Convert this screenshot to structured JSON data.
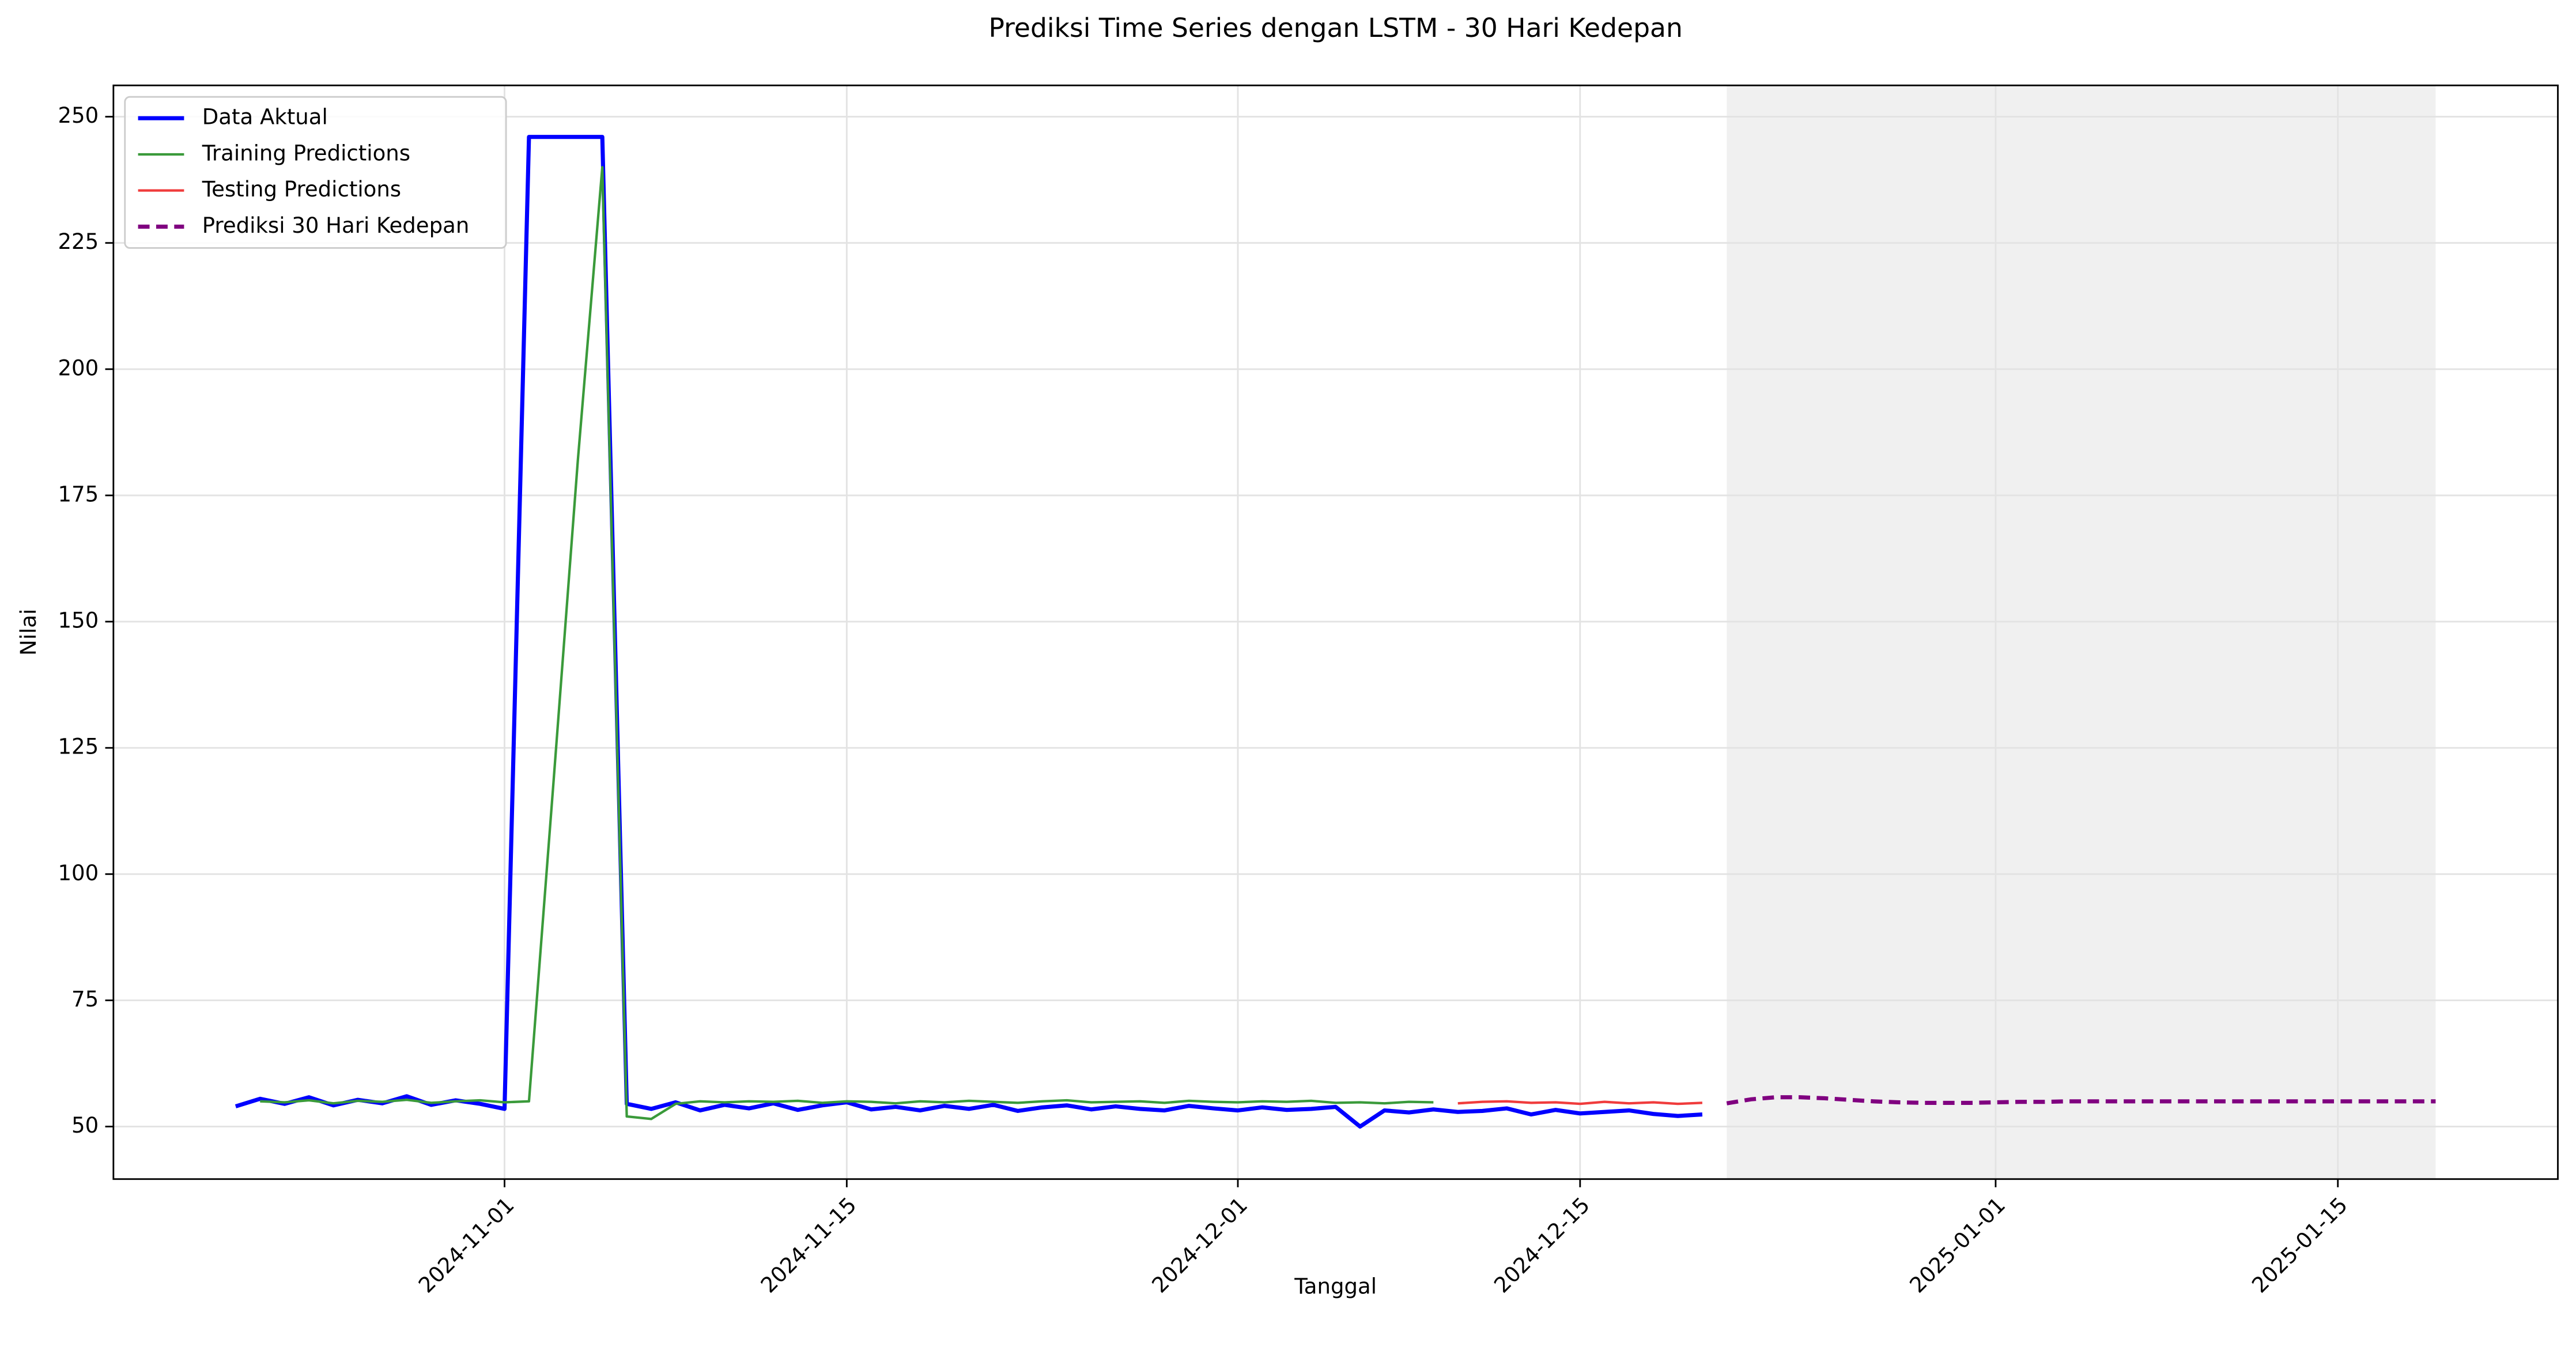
{
  "chart_data": {
    "type": "line",
    "title": "Prediksi Time Series dengan LSTM - 30 Hari Kedepan",
    "x_label": "Tanggal",
    "y_label": "Nilai",
    "x": [
      "2024-10-21",
      "2024-10-22",
      "2024-10-23",
      "2024-10-24",
      "2024-10-25",
      "2024-10-26",
      "2024-10-27",
      "2024-10-28",
      "2024-10-29",
      "2024-10-30",
      "2024-10-31",
      "2024-11-01",
      "2024-11-02",
      "2024-11-03",
      "2024-11-04",
      "2024-11-05",
      "2024-11-06",
      "2024-11-07",
      "2024-11-08",
      "2024-11-09",
      "2024-11-10",
      "2024-11-11",
      "2024-11-12",
      "2024-11-13",
      "2024-11-14",
      "2024-11-15",
      "2024-11-16",
      "2024-11-17",
      "2024-11-18",
      "2024-11-19",
      "2024-11-20",
      "2024-11-21",
      "2024-11-22",
      "2024-11-23",
      "2024-11-24",
      "2024-11-25",
      "2024-11-26",
      "2024-11-27",
      "2024-11-28",
      "2024-11-29",
      "2024-11-30",
      "2024-12-01",
      "2024-12-02",
      "2024-12-03",
      "2024-12-04",
      "2024-12-05",
      "2024-12-06",
      "2024-12-07",
      "2024-12-08",
      "2024-12-09",
      "2024-12-10",
      "2024-12-11",
      "2024-12-12",
      "2024-12-13",
      "2024-12-14",
      "2024-12-15",
      "2024-12-16",
      "2024-12-17",
      "2024-12-18",
      "2024-12-19",
      "2024-12-20",
      "2024-12-21",
      "2024-12-22",
      "2024-12-23",
      "2024-12-24",
      "2024-12-25",
      "2024-12-26",
      "2024-12-27",
      "2024-12-28",
      "2024-12-29",
      "2024-12-30",
      "2024-12-31",
      "2025-01-01",
      "2025-01-02",
      "2025-01-03",
      "2025-01-04",
      "2025-01-05",
      "2025-01-06",
      "2025-01-07",
      "2025-01-08",
      "2025-01-09",
      "2025-01-10",
      "2025-01-11",
      "2025-01-12",
      "2025-01-13",
      "2025-01-14",
      "2025-01-15",
      "2025-01-16",
      "2025-01-17",
      "2025-01-18",
      "2025-01-19"
    ],
    "series": [
      {
        "name": "Data Aktual",
        "color": "#0000ff",
        "linewidth": 2.5,
        "dashed": false,
        "values": [
          54,
          55.5,
          54.5,
          55.8,
          54.2,
          55.3,
          54.6,
          56,
          54.3,
          55.2,
          54.5,
          53.5,
          246,
          246,
          246,
          246,
          54.5,
          53.5,
          54.8,
          53.2,
          54.3,
          53.6,
          54.6,
          53.3,
          54.2,
          54.8,
          53.4,
          53.9,
          53.2,
          54.1,
          53.5,
          54.3,
          53.1,
          53.8,
          54.2,
          53.4,
          54,
          53.5,
          53.2,
          54.1,
          53.6,
          53.2,
          53.8,
          53.3,
          53.5,
          53.9,
          50,
          53.2,
          52.8,
          53.4,
          52.9,
          53.1,
          53.6,
          52.4,
          53.3,
          52.6,
          52.9,
          53.2,
          52.5,
          52.1,
          52.4,
          null,
          null,
          null,
          null,
          null,
          null,
          null,
          null,
          null,
          null,
          null,
          null,
          null,
          null,
          null,
          null,
          null,
          null,
          null,
          null,
          null,
          null,
          null,
          null,
          null,
          null,
          null,
          null,
          null,
          null
        ]
      },
      {
        "name": "Training Predictions",
        "color": "#3a9a3a",
        "linewidth": 1.5,
        "dashed": false,
        "values": [
          null,
          55,
          54.8,
          55.2,
          54.6,
          55.1,
          54.9,
          55.3,
          54.7,
          55,
          55.2,
          54.8,
          55,
          118,
          182,
          240,
          52,
          51.5,
          54.5,
          55,
          54.8,
          55,
          54.9,
          55.1,
          54.7,
          55,
          54.9,
          54.6,
          55,
          54.8,
          55.1,
          54.9,
          54.7,
          55,
          55.2,
          54.8,
          54.9,
          55,
          54.7,
          55.1,
          54.9,
          54.8,
          55,
          54.9,
          55.1,
          54.7,
          54.8,
          54.6,
          54.9,
          54.8,
          null,
          null,
          null,
          null,
          null,
          null,
          null,
          null,
          null,
          null,
          null,
          null,
          null,
          null,
          null,
          null,
          null,
          null,
          null,
          null,
          null,
          null,
          null,
          null,
          null,
          null,
          null,
          null,
          null,
          null,
          null,
          null,
          null,
          null,
          null,
          null,
          null,
          null,
          null,
          null,
          null
        ]
      },
      {
        "name": "Testing Predictions",
        "color": "#f03c3c",
        "linewidth": 1.5,
        "dashed": false,
        "values": [
          null,
          null,
          null,
          null,
          null,
          null,
          null,
          null,
          null,
          null,
          null,
          null,
          null,
          null,
          null,
          null,
          null,
          null,
          null,
          null,
          null,
          null,
          null,
          null,
          null,
          null,
          null,
          null,
          null,
          null,
          null,
          null,
          null,
          null,
          null,
          null,
          null,
          null,
          null,
          null,
          null,
          null,
          null,
          null,
          null,
          null,
          null,
          null,
          null,
          null,
          54.6,
          54.9,
          55,
          54.7,
          54.8,
          54.5,
          54.9,
          54.6,
          54.8,
          54.5,
          54.7,
          null,
          null,
          null,
          null,
          null,
          null,
          null,
          null,
          null,
          null,
          null,
          null,
          null,
          null,
          null,
          null,
          null,
          null,
          null,
          null,
          null,
          null,
          null,
          null,
          null,
          null,
          null,
          null,
          null,
          null
        ]
      },
      {
        "name": "Prediksi 30 Hari Kedepan",
        "color": "#800080",
        "linewidth": 2.5,
        "dashed": true,
        "values": [
          null,
          null,
          null,
          null,
          null,
          null,
          null,
          null,
          null,
          null,
          null,
          null,
          null,
          null,
          null,
          null,
          null,
          null,
          null,
          null,
          null,
          null,
          null,
          null,
          null,
          null,
          null,
          null,
          null,
          null,
          null,
          null,
          null,
          null,
          null,
          null,
          null,
          null,
          null,
          null,
          null,
          null,
          null,
          null,
          null,
          null,
          null,
          null,
          null,
          null,
          null,
          null,
          null,
          null,
          null,
          null,
          null,
          null,
          null,
          null,
          null,
          54.6,
          55.4,
          55.8,
          55.8,
          55.6,
          55.3,
          55,
          54.8,
          54.7,
          54.7,
          54.7,
          54.8,
          54.9,
          54.9,
          55,
          55,
          55,
          55,
          55,
          55,
          55,
          55,
          55,
          55,
          55,
          55,
          55,
          55,
          55,
          55
        ]
      }
    ],
    "xlim": [
      "2024-10-16",
      "2025-01-24"
    ],
    "xticks": [
      "2024-11-01",
      "2024-11-15",
      "2024-12-01",
      "2024-12-15",
      "2025-01-01",
      "2025-01-15"
    ],
    "ylim": [
      39.6,
      256.2
    ],
    "yticks": [
      50,
      75,
      100,
      125,
      150,
      175,
      200,
      225,
      250
    ],
    "grid": true,
    "legend": "upper-left",
    "highlight": {
      "start": "2024-12-21",
      "end": "2025-01-19",
      "color": "#f0f0f0"
    }
  }
}
